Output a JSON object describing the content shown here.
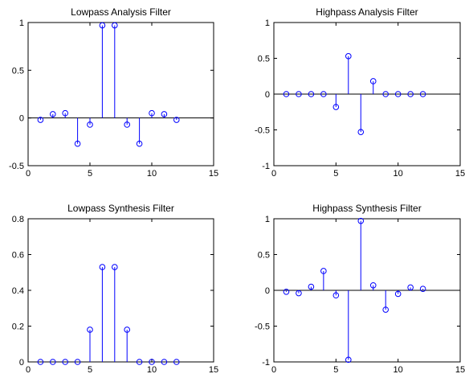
{
  "chart_data": [
    {
      "type": "stem",
      "title": "Lowpass Analysis Filter",
      "xlim": [
        0,
        15
      ],
      "ylim": [
        -0.5,
        1
      ],
      "xticks": [
        0,
        5,
        10,
        15
      ],
      "yticks": [
        -0.5,
        0,
        0.5,
        1
      ],
      "x": [
        1,
        2,
        3,
        4,
        5,
        6,
        7,
        8,
        9,
        10,
        11,
        12
      ],
      "y": [
        -0.02,
        0.04,
        0.05,
        -0.27,
        -0.07,
        0.97,
        0.97,
        -0.07,
        -0.27,
        0.05,
        0.04,
        -0.02
      ],
      "grid": false
    },
    {
      "type": "stem",
      "title": "Highpass Analysis Filter",
      "xlim": [
        0,
        15
      ],
      "ylim": [
        -1,
        1
      ],
      "xticks": [
        0,
        5,
        10,
        15
      ],
      "yticks": [
        -1,
        -0.5,
        0,
        0.5,
        1
      ],
      "x": [
        1,
        2,
        3,
        4,
        5,
        6,
        7,
        8,
        9,
        10,
        11,
        12
      ],
      "y": [
        0,
        0,
        0,
        0,
        -0.18,
        0.53,
        -0.53,
        0.18,
        0,
        0,
        0,
        0
      ],
      "grid": false
    },
    {
      "type": "stem",
      "title": "Lowpass Synthesis Filter",
      "xlim": [
        0,
        15
      ],
      "ylim": [
        0,
        0.8
      ],
      "xticks": [
        0,
        5,
        10,
        15
      ],
      "yticks": [
        0,
        0.2,
        0.4,
        0.6,
        0.8
      ],
      "x": [
        1,
        2,
        3,
        4,
        5,
        6,
        7,
        8,
        9,
        10,
        11,
        12
      ],
      "y": [
        0,
        0,
        0,
        0,
        0.18,
        0.53,
        0.53,
        0.18,
        0,
        0,
        0,
        0
      ],
      "grid": false
    },
    {
      "type": "stem",
      "title": "Highpass Synthesis Filter",
      "xlim": [
        0,
        15
      ],
      "ylim": [
        -1,
        1
      ],
      "xticks": [
        0,
        5,
        10,
        15
      ],
      "yticks": [
        -1,
        -0.5,
        0,
        0.5,
        1
      ],
      "x": [
        1,
        2,
        3,
        4,
        5,
        6,
        7,
        8,
        9,
        10,
        11,
        12
      ],
      "y": [
        -0.02,
        -0.04,
        0.05,
        0.27,
        -0.07,
        -0.97,
        0.97,
        0.07,
        -0.27,
        -0.05,
        0.04,
        0.02
      ],
      "grid": false
    }
  ],
  "colors": {
    "stem": "#0000ff",
    "baseline": "#000000",
    "axes": "#000000",
    "background": "#ffffff"
  }
}
